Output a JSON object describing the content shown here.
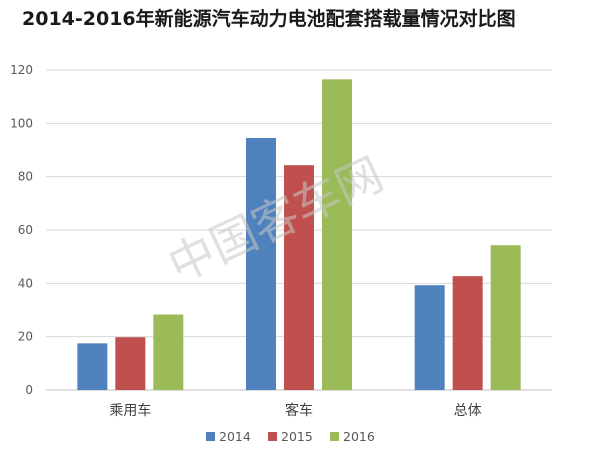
{
  "chart_data": {
    "type": "bar",
    "title": "2014-2016年新能源汽车动力电池配套搭载量情况对比图",
    "categories": [
      "乘用车",
      "客车",
      "总体"
    ],
    "series": [
      {
        "name": "2014",
        "values": [
          17.5,
          94.5,
          39.3
        ],
        "color": "#4f81bd"
      },
      {
        "name": "2015",
        "values": [
          19.8,
          84.3,
          42.7
        ],
        "color": "#c0504d"
      },
      {
        "name": "2016",
        "values": [
          28.3,
          116.5,
          54.3
        ],
        "color": "#9bbb59"
      }
    ],
    "ylim": [
      0,
      120
    ],
    "yticks": [
      0,
      20,
      40,
      60,
      80,
      100,
      120
    ],
    "grid": true,
    "legend_position": "bottom-center",
    "watermark": "中国客车网"
  }
}
